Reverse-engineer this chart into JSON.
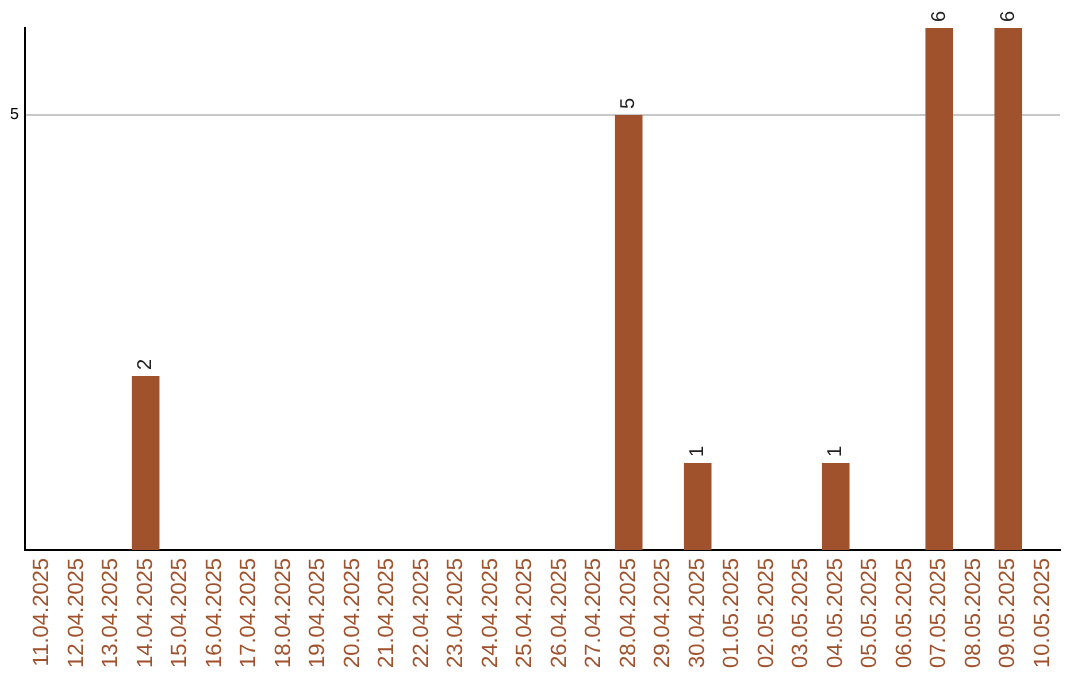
{
  "chart_data": {
    "type": "bar",
    "categories": [
      "11.04.2025",
      "12.04.2025",
      "13.04.2025",
      "14.04.2025",
      "15.04.2025",
      "16.04.2025",
      "17.04.2025",
      "18.04.2025",
      "19.04.2025",
      "20.04.2025",
      "21.04.2025",
      "22.04.2025",
      "23.04.2025",
      "24.04.2025",
      "25.04.2025",
      "26.04.2025",
      "27.04.2025",
      "28.04.2025",
      "29.04.2025",
      "30.04.2025",
      "01.05.2025",
      "02.05.2025",
      "03.05.2025",
      "04.05.2025",
      "05.05.2025",
      "06.05.2025",
      "07.05.2025",
      "08.05.2025",
      "09.05.2025",
      "10.05.2025"
    ],
    "values": [
      0,
      0,
      0,
      2,
      0,
      0,
      0,
      0,
      0,
      0,
      0,
      0,
      0,
      0,
      0,
      0,
      0,
      5,
      0,
      1,
      0,
      0,
      0,
      1,
      0,
      0,
      6,
      0,
      6,
      0
    ],
    "value_labels": [
      null,
      null,
      null,
      "2",
      null,
      null,
      null,
      null,
      null,
      null,
      null,
      null,
      null,
      null,
      null,
      null,
      null,
      "5",
      null,
      "1",
      null,
      null,
      null,
      "1",
      null,
      null,
      "6",
      null,
      "6",
      null
    ],
    "color": "#a0522d",
    "ylim": [
      0,
      6
    ],
    "yticks": [
      5
    ],
    "grid": "y",
    "legend": false
  }
}
